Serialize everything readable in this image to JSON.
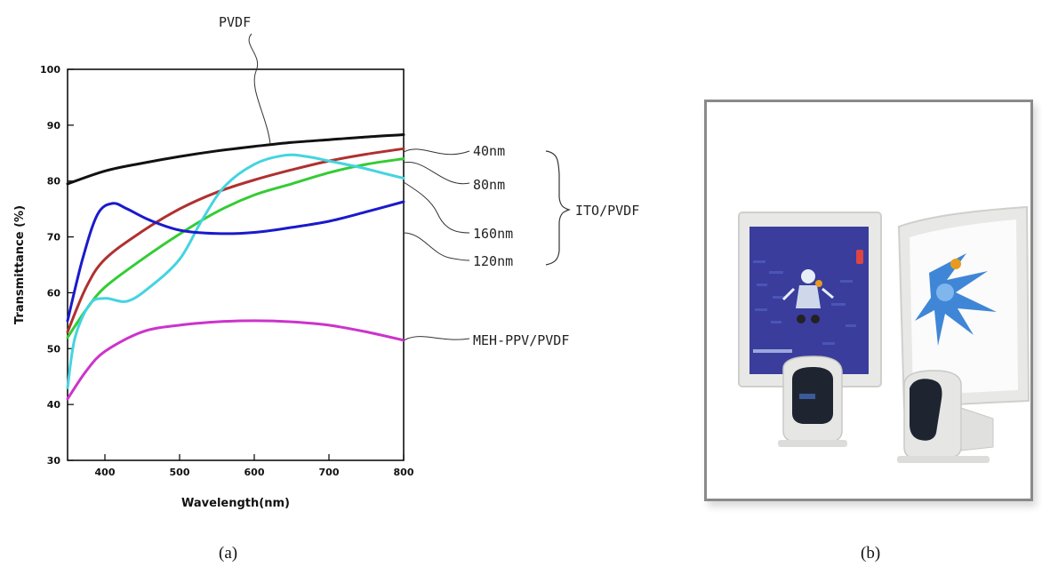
{
  "chart_data": {
    "type": "line",
    "xlabel": "Wavelength(nm)",
    "ylabel": "Transmittance (%)",
    "xlim": [
      350,
      800
    ],
    "ylim": [
      30,
      100
    ],
    "x_ticks": [
      "400",
      "500",
      "600",
      "700",
      "800"
    ],
    "y_ticks": [
      "30",
      "40",
      "50",
      "60",
      "70",
      "80",
      "90",
      "100"
    ],
    "grid": false,
    "series": [
      {
        "name": "PVDF",
        "color": "#111111",
        "x": [
          350,
          400,
          450,
          500,
          550,
          600,
          650,
          700,
          750,
          800
        ],
        "y": [
          79.5,
          81.8,
          83.2,
          84.4,
          85.4,
          86.2,
          86.9,
          87.4,
          87.9,
          88.3
        ]
      },
      {
        "name": "40nm",
        "color": "#b03030",
        "x": [
          350,
          375,
          400,
          450,
          500,
          550,
          600,
          650,
          700,
          750,
          800
        ],
        "y": [
          53,
          61,
          66,
          71,
          75,
          78,
          80.2,
          82,
          83.6,
          84.8,
          85.8
        ]
      },
      {
        "name": "80nm",
        "color": "#33cc33",
        "x": [
          350,
          375,
          400,
          450,
          500,
          550,
          600,
          650,
          700,
          750,
          800
        ],
        "y": [
          52,
          57,
          61,
          66,
          70.5,
          74.5,
          77.5,
          79.5,
          81.5,
          83,
          84
        ]
      },
      {
        "name": "160nm",
        "color": "#44d4e0",
        "x": [
          350,
          360,
          380,
          400,
          430,
          460,
          500,
          530,
          560,
          600,
          640,
          670,
          700,
          740,
          770,
          800
        ],
        "y": [
          43,
          52,
          58,
          59,
          58.5,
          61,
          66,
          73,
          79,
          83,
          84.6,
          84.4,
          83.6,
          82.5,
          81.5,
          80.5
        ]
      },
      {
        "name": "120nm",
        "color": "#1a1acc",
        "x": [
          350,
          370,
          390,
          410,
          430,
          460,
          500,
          550,
          600,
          650,
          700,
          750,
          800
        ],
        "y": [
          55,
          66,
          74,
          76,
          75,
          73,
          71.2,
          70.6,
          70.8,
          71.7,
          72.8,
          74.5,
          76.3
        ]
      },
      {
        "name": "MEH-PPV/PVDF",
        "color": "#cc33cc",
        "x": [
          350,
          375,
          400,
          450,
          500,
          550,
          600,
          650,
          700,
          750,
          800
        ],
        "y": [
          41,
          46,
          49.5,
          53,
          54.2,
          54.8,
          55,
          54.8,
          54.2,
          53,
          51.5
        ]
      }
    ]
  },
  "annotations": {
    "pvdf": "PVDF",
    "nm40": "40nm",
    "nm80": "80nm",
    "nm160": "160nm",
    "nm120": "120nm",
    "ito": "ITO/PVDF",
    "meh": "MEH-PPV/PVDF"
  },
  "captions": {
    "a": "(a)",
    "b": "(b)"
  },
  "photo": {
    "subject": "two flexible display prototypes on stands showing an animated blue character",
    "colors": {
      "left_screen": "#3a3d9c",
      "frame": "#e6e6e4",
      "stand_face": "#1f2530"
    }
  }
}
